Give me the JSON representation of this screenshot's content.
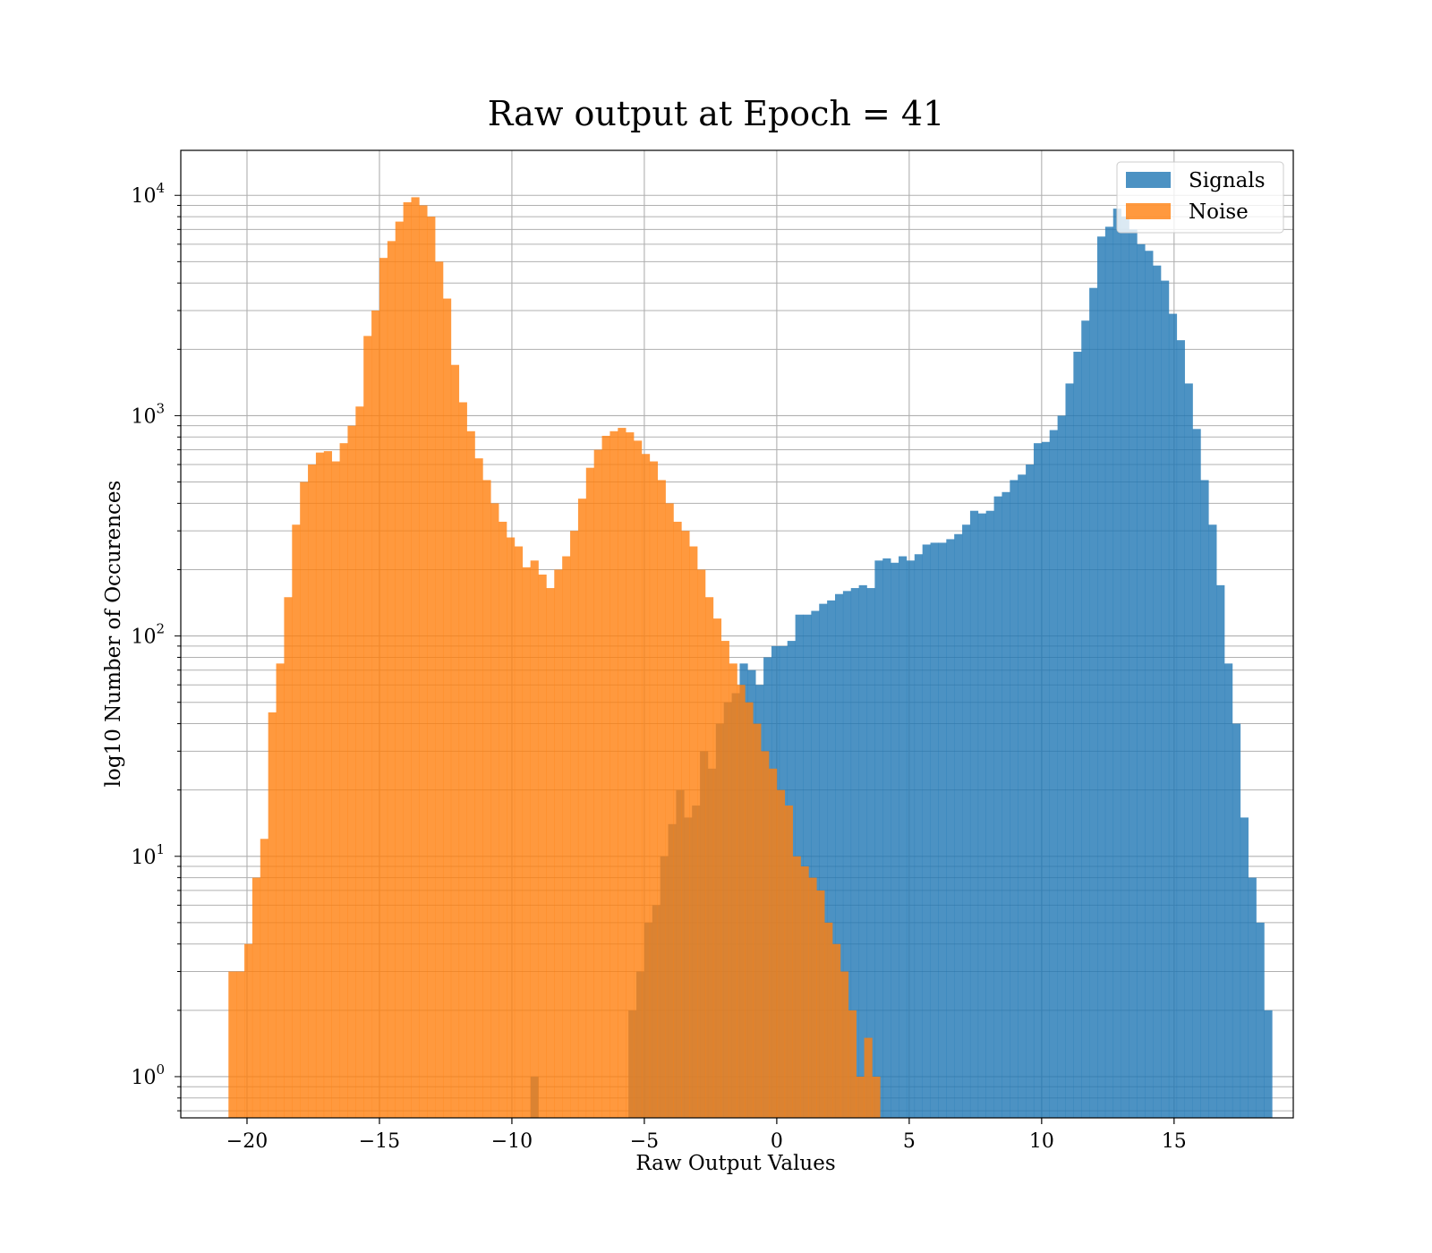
{
  "chart_data": {
    "type": "bar",
    "title": "Raw output at Epoch = 41",
    "xlabel": "Raw Output Values",
    "ylabel": "log10 Number of Occurences",
    "xlim": [
      -22.5,
      19.5
    ],
    "ylim": [
      0.65,
      16000
    ],
    "yscale": "log",
    "grid": true,
    "legend_position": "top-right",
    "xticks": [
      -20,
      -15,
      -10,
      -5,
      0,
      5,
      10,
      15
    ],
    "xtick_labels": [
      "−20",
      "−15",
      "−10",
      "−5",
      "0",
      "5",
      "10",
      "15"
    ],
    "yticks": [
      {
        "value": 1,
        "base": "10",
        "exp": "0"
      },
      {
        "value": 10,
        "base": "10",
        "exp": "1"
      },
      {
        "value": 100,
        "base": "10",
        "exp": "2"
      },
      {
        "value": 1000,
        "base": "10",
        "exp": "3"
      },
      {
        "value": 10000,
        "base": "10",
        "exp": "4"
      }
    ],
    "series": [
      {
        "name": "Signals",
        "color": "#1f77b4",
        "opacity": 0.8,
        "bins": [
          [
            -9.3,
            1
          ],
          [
            -5.6,
            2
          ],
          [
            -5.3,
            3
          ],
          [
            -5.0,
            5
          ],
          [
            -4.7,
            6
          ],
          [
            -4.4,
            10
          ],
          [
            -4.1,
            14
          ],
          [
            -3.8,
            20
          ],
          [
            -3.5,
            15
          ],
          [
            -3.2,
            17
          ],
          [
            -2.9,
            30
          ],
          [
            -2.6,
            25
          ],
          [
            -2.3,
            40
          ],
          [
            -2.0,
            50
          ],
          [
            -1.7,
            55
          ],
          [
            -1.4,
            75
          ],
          [
            -1.1,
            70
          ],
          [
            -0.8,
            60
          ],
          [
            -0.5,
            80
          ],
          [
            -0.2,
            90
          ],
          [
            0.1,
            90
          ],
          [
            0.4,
            95
          ],
          [
            0.7,
            125
          ],
          [
            1.0,
            125
          ],
          [
            1.3,
            130
          ],
          [
            1.6,
            140
          ],
          [
            1.9,
            145
          ],
          [
            2.2,
            155
          ],
          [
            2.5,
            160
          ],
          [
            2.8,
            165
          ],
          [
            3.1,
            170
          ],
          [
            3.4,
            165
          ],
          [
            3.7,
            220
          ],
          [
            4.0,
            225
          ],
          [
            4.3,
            215
          ],
          [
            4.6,
            230
          ],
          [
            4.9,
            220
          ],
          [
            5.2,
            235
          ],
          [
            5.5,
            260
          ],
          [
            5.8,
            265
          ],
          [
            6.1,
            265
          ],
          [
            6.4,
            275
          ],
          [
            6.7,
            290
          ],
          [
            7.0,
            320
          ],
          [
            7.3,
            370
          ],
          [
            7.6,
            360
          ],
          [
            7.9,
            370
          ],
          [
            8.2,
            430
          ],
          [
            8.5,
            450
          ],
          [
            8.8,
            510
          ],
          [
            9.1,
            540
          ],
          [
            9.4,
            600
          ],
          [
            9.7,
            750
          ],
          [
            10.0,
            760
          ],
          [
            10.3,
            860
          ],
          [
            10.6,
            1000
          ],
          [
            10.9,
            1400
          ],
          [
            11.2,
            1950
          ],
          [
            11.5,
            2700
          ],
          [
            11.8,
            3800
          ],
          [
            12.1,
            6500
          ],
          [
            12.4,
            7200
          ],
          [
            12.7,
            8700
          ],
          [
            13.0,
            8000
          ],
          [
            13.3,
            7000
          ],
          [
            13.6,
            6000
          ],
          [
            13.9,
            5600
          ],
          [
            14.2,
            4800
          ],
          [
            14.5,
            4100
          ],
          [
            14.8,
            2900
          ],
          [
            15.1,
            2200
          ],
          [
            15.4,
            1400
          ],
          [
            15.7,
            870
          ],
          [
            16.0,
            510
          ],
          [
            16.3,
            320
          ],
          [
            16.6,
            170
          ],
          [
            16.9,
            75
          ],
          [
            17.2,
            40
          ],
          [
            17.5,
            15
          ],
          [
            17.8,
            8
          ],
          [
            18.1,
            5
          ],
          [
            18.4,
            2
          ]
        ]
      },
      {
        "name": "Noise",
        "color": "#ff7f0e",
        "opacity": 0.8,
        "bins": [
          [
            -20.7,
            3
          ],
          [
            -20.4,
            3
          ],
          [
            -20.1,
            4
          ],
          [
            -19.8,
            8
          ],
          [
            -19.5,
            12
          ],
          [
            -19.2,
            45
          ],
          [
            -18.9,
            75
          ],
          [
            -18.6,
            150
          ],
          [
            -18.3,
            320
          ],
          [
            -18.0,
            500
          ],
          [
            -17.7,
            600
          ],
          [
            -17.4,
            680
          ],
          [
            -17.1,
            690
          ],
          [
            -16.8,
            620
          ],
          [
            -16.5,
            750
          ],
          [
            -16.2,
            900
          ],
          [
            -15.9,
            1100
          ],
          [
            -15.6,
            2300
          ],
          [
            -15.3,
            3000
          ],
          [
            -15.0,
            5200
          ],
          [
            -14.7,
            6200
          ],
          [
            -14.4,
            7600
          ],
          [
            -14.1,
            9300
          ],
          [
            -13.8,
            9800
          ],
          [
            -13.5,
            9000
          ],
          [
            -13.2,
            8000
          ],
          [
            -12.9,
            5000
          ],
          [
            -12.6,
            3400
          ],
          [
            -12.3,
            1700
          ],
          [
            -12.0,
            1150
          ],
          [
            -11.7,
            850
          ],
          [
            -11.4,
            640
          ],
          [
            -11.1,
            510
          ],
          [
            -10.8,
            400
          ],
          [
            -10.5,
            330
          ],
          [
            -10.2,
            280
          ],
          [
            -9.9,
            255
          ],
          [
            -9.6,
            205
          ],
          [
            -9.3,
            220
          ],
          [
            -9.0,
            190
          ],
          [
            -8.7,
            165
          ],
          [
            -8.4,
            200
          ],
          [
            -8.1,
            230
          ],
          [
            -7.8,
            300
          ],
          [
            -7.5,
            420
          ],
          [
            -7.2,
            580
          ],
          [
            -6.9,
            700
          ],
          [
            -6.6,
            810
          ],
          [
            -6.3,
            850
          ],
          [
            -6.0,
            880
          ],
          [
            -5.7,
            840
          ],
          [
            -5.4,
            770
          ],
          [
            -5.1,
            670
          ],
          [
            -4.8,
            620
          ],
          [
            -4.5,
            510
          ],
          [
            -4.2,
            400
          ],
          [
            -3.9,
            330
          ],
          [
            -3.6,
            300
          ],
          [
            -3.3,
            255
          ],
          [
            -3.0,
            200
          ],
          [
            -2.7,
            150
          ],
          [
            -2.4,
            120
          ],
          [
            -2.1,
            95
          ],
          [
            -1.8,
            75
          ],
          [
            -1.5,
            60
          ],
          [
            -1.2,
            50
          ],
          [
            -0.9,
            40
          ],
          [
            -0.6,
            30
          ],
          [
            -0.3,
            25
          ],
          [
            0.0,
            20
          ],
          [
            0.3,
            17
          ],
          [
            0.6,
            10
          ],
          [
            0.9,
            9
          ],
          [
            1.2,
            8
          ],
          [
            1.5,
            7
          ],
          [
            1.8,
            5
          ],
          [
            2.1,
            4
          ],
          [
            2.4,
            3
          ],
          [
            2.7,
            2
          ],
          [
            3.0,
            1
          ],
          [
            3.3,
            1.5
          ],
          [
            3.6,
            1
          ]
        ]
      }
    ]
  }
}
